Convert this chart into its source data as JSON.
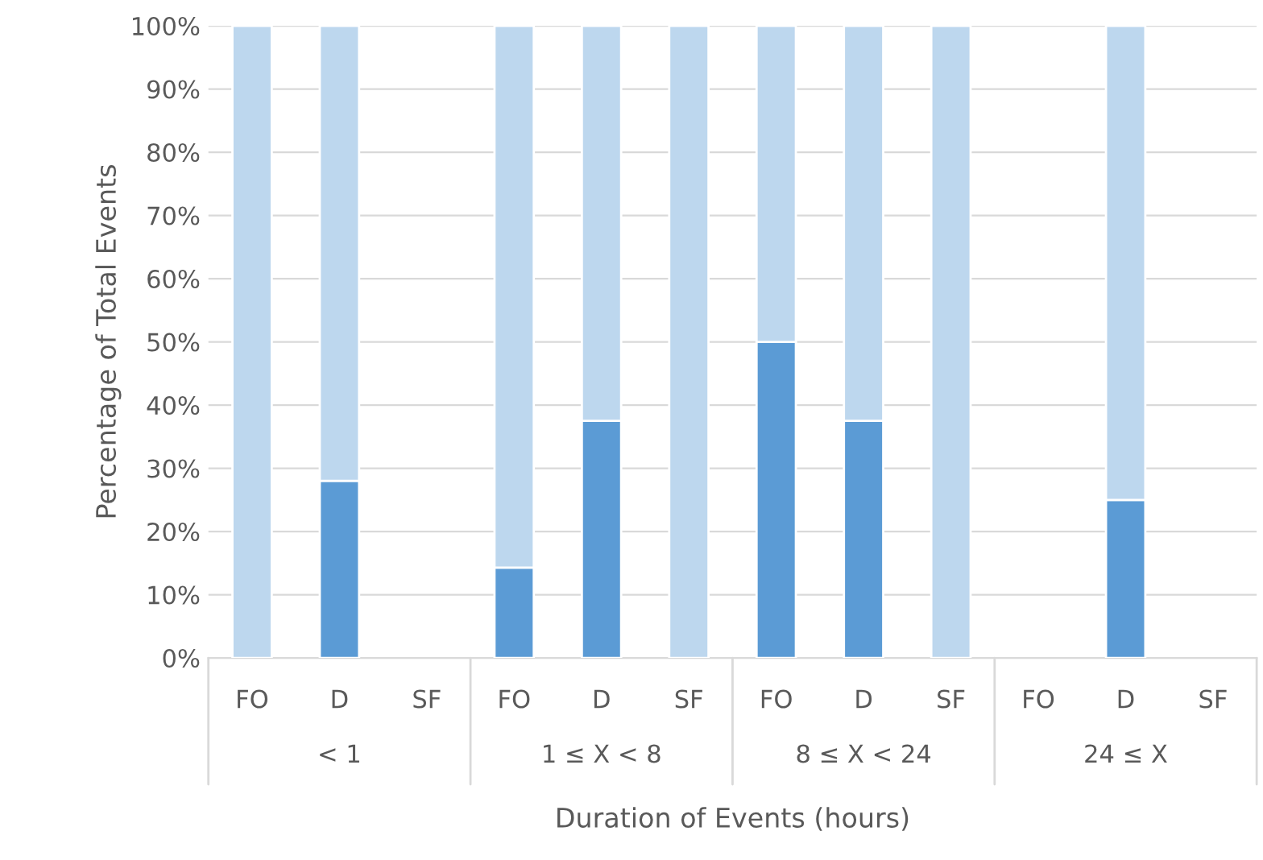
{
  "chart_data": {
    "type": "bar",
    "stacked": true,
    "xlabel": "Duration of Events (hours)",
    "ylabel": "Percentage of Total Events",
    "categories": [
      "FO",
      "D",
      "SF",
      "FO",
      "D",
      "SF",
      "FO",
      "D",
      "SF",
      "FO",
      "D",
      "SF"
    ],
    "series": [
      {
        "color": "#5b9bd5",
        "values": [
          0,
          28,
          null,
          14.3,
          37.5,
          0,
          50,
          37.5,
          0,
          null,
          25,
          null
        ]
      },
      {
        "color": "#bdd7ee",
        "values": [
          100,
          72,
          null,
          85.7,
          62.5,
          100,
          50,
          62.5,
          100,
          null,
          75,
          null
        ]
      }
    ],
    "annotations": [
      "< 1",
      "1 ≤ X < 8",
      "8 ≤ X < 24",
      "24 ≤ X"
    ],
    "ylim": [
      0,
      100
    ],
    "yticks": [
      {
        "value": 0,
        "label": "0%"
      },
      {
        "value": 10,
        "label": "10%"
      },
      {
        "value": 20,
        "label": "20%"
      },
      {
        "value": 30,
        "label": "30%"
      },
      {
        "value": 40,
        "label": "40%"
      },
      {
        "value": 50,
        "label": "50%"
      },
      {
        "value": 60,
        "label": "60%"
      },
      {
        "value": 70,
        "label": "70%"
      },
      {
        "value": 80,
        "label": "80%"
      },
      {
        "value": 90,
        "label": "90%"
      },
      {
        "value": 100,
        "label": "100%"
      }
    ],
    "grid": "y",
    "legend": false
  }
}
